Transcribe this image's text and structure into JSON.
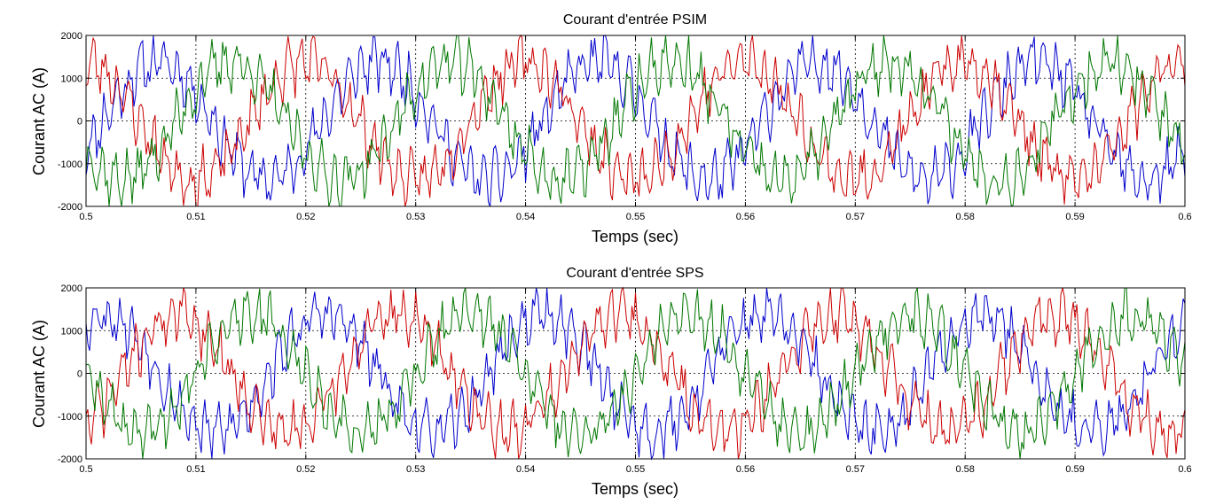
{
  "chart_data": [
    {
      "type": "line",
      "title": "Courant d'entrée PSIM",
      "xlabel": "Temps (sec)",
      "ylabel": "Courant AC (A)",
      "xlim": [
        0.5,
        0.6
      ],
      "ylim": [
        -2000,
        2000
      ],
      "xticks": [
        "0.5",
        "0.51",
        "0.52",
        "0.53",
        "0.54",
        "0.55",
        "0.56",
        "0.57",
        "0.58",
        "0.59",
        "0.6"
      ],
      "yticks": [
        "2000",
        "1000",
        "0",
        "-1000",
        "-2000"
      ],
      "grid": true,
      "frequency_hz": 50,
      "series": [
        {
          "color": "#0000cc",
          "amplitude": 1380,
          "phase_deg": -28,
          "ripple": 430,
          "seed": 11
        },
        {
          "color": "#cc0000",
          "amplitude": 1380,
          "phase_deg": 92,
          "ripple": 430,
          "seed": 23
        },
        {
          "color": "#007700",
          "amplitude": 1380,
          "phase_deg": 212,
          "ripple": 430,
          "seed": 37
        }
      ]
    },
    {
      "type": "line",
      "title": "Courant d'entrée SPS",
      "xlabel": "Temps (sec)",
      "ylabel": "Courant AC (A)",
      "xlim": [
        0.5,
        0.6
      ],
      "ylim": [
        -2000,
        2000
      ],
      "xticks": [
        "0.5",
        "0.51",
        "0.52",
        "0.53",
        "0.54",
        "0.55",
        "0.56",
        "0.57",
        "0.58",
        "0.59",
        "0.6"
      ],
      "yticks": [
        "2000",
        "1000",
        "0",
        "-1000",
        "-2000"
      ],
      "grid": true,
      "frequency_hz": 50,
      "series": [
        {
          "color": "#0000cc",
          "amplitude": 1380,
          "phase_deg": 60,
          "ripple": 430,
          "seed": 53
        },
        {
          "color": "#cc0000",
          "amplitude": 1380,
          "phase_deg": -60,
          "ripple": 430,
          "seed": 71
        },
        {
          "color": "#007700",
          "amplitude": 1380,
          "phase_deg": 180,
          "ripple": 430,
          "seed": 89
        }
      ]
    }
  ]
}
